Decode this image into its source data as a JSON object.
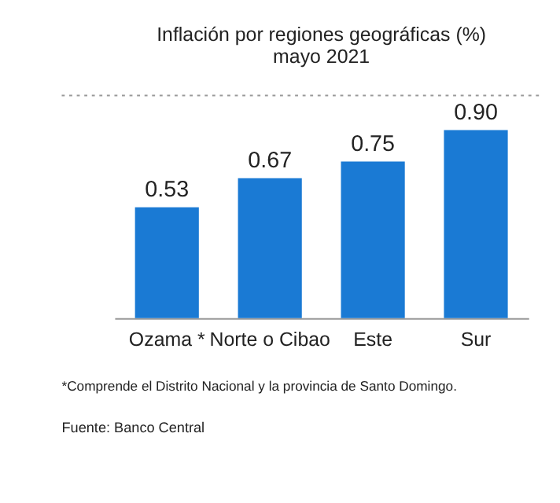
{
  "chart_data": {
    "type": "bar",
    "title": "Inflación por regiones geográficas (%)",
    "subtitle": "mayo 2021",
    "categories": [
      "Ozama *",
      "Norte o Cibao",
      "Este",
      "Sur"
    ],
    "values": [
      0.53,
      0.67,
      0.75,
      0.9
    ],
    "value_labels": [
      "0.53",
      "0.67",
      "0.75",
      "0.90"
    ],
    "color": "#1a7ad4",
    "grid": false,
    "annotations": [
      "*Comprende el Distrito Nacional y la provincia de Santo Domingo.",
      "Fuente: Banco Central"
    ]
  }
}
